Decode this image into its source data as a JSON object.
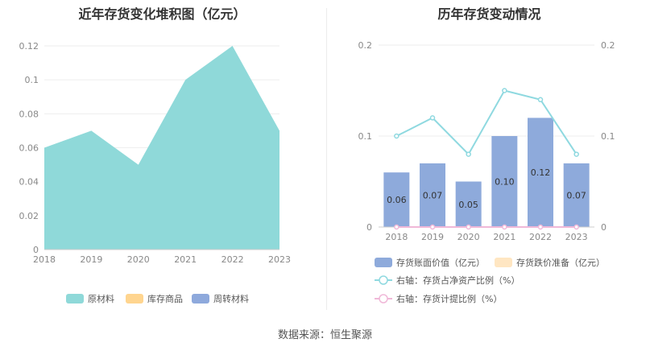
{
  "source": "数据来源：恒生聚源",
  "chart_data": [
    {
      "type": "area",
      "title": "近年存货变化堆积图（亿元）",
      "x": [
        "2018",
        "2019",
        "2020",
        "2021",
        "2022",
        "2023"
      ],
      "ylim": [
        0,
        0.12
      ],
      "yticks": [
        "0",
        "0.02",
        "0.04",
        "0.06",
        "0.08",
        "0.1",
        "0.12"
      ],
      "grid": true,
      "legend_position": "bottom",
      "series": [
        {
          "name": "原材料",
          "values": [
            0.06,
            0.07,
            0.05,
            0.1,
            0.12,
            0.07
          ],
          "color": "#8fd9d9"
        },
        {
          "name": "库存商品",
          "values": [
            0,
            0,
            0,
            0,
            0,
            0
          ],
          "color": "#ffd58f"
        },
        {
          "name": "周转材料",
          "values": [
            0,
            0,
            0,
            0,
            0,
            0
          ],
          "color": "#8ea9dc"
        }
      ]
    },
    {
      "type": "bar",
      "title": "历年存货变动情况",
      "categories": [
        "2018",
        "2019",
        "2020",
        "2021",
        "2022",
        "2023"
      ],
      "ylim_left": [
        0,
        0.2
      ],
      "ylim_right": [
        0,
        0.2
      ],
      "yticks_left": [
        "0",
        "0.1",
        "0.2"
      ],
      "yticks_right": [
        "0",
        "0.1",
        "0.2"
      ],
      "grid": true,
      "legend_position": "bottom",
      "series": [
        {
          "name": "存货账面价值（亿元）",
          "kind": "bar",
          "axis": "left",
          "values": [
            0.06,
            0.07,
            0.05,
            0.1,
            0.12,
            0.07
          ],
          "labels": [
            "0.06",
            "0.07",
            "0.05",
            "0.10",
            "0.12",
            "0.07"
          ],
          "color": "#8eaadb"
        },
        {
          "name": "存货跌价准备（亿元）",
          "kind": "bar",
          "axis": "left",
          "values": [
            0,
            0,
            0,
            0,
            0,
            0
          ],
          "color": "#ffe6c2"
        },
        {
          "name": "右轴：存货占净资产比例（%）",
          "kind": "line",
          "axis": "right",
          "values": [
            0.1,
            0.12,
            0.08,
            0.15,
            0.14,
            0.08
          ],
          "color": "#8fd9e0"
        },
        {
          "name": "右轴：存货计提比例（%）",
          "kind": "line",
          "axis": "right",
          "values": [
            0,
            0,
            0,
            0,
            0,
            0
          ],
          "color": "#f0b8d8"
        }
      ]
    }
  ]
}
